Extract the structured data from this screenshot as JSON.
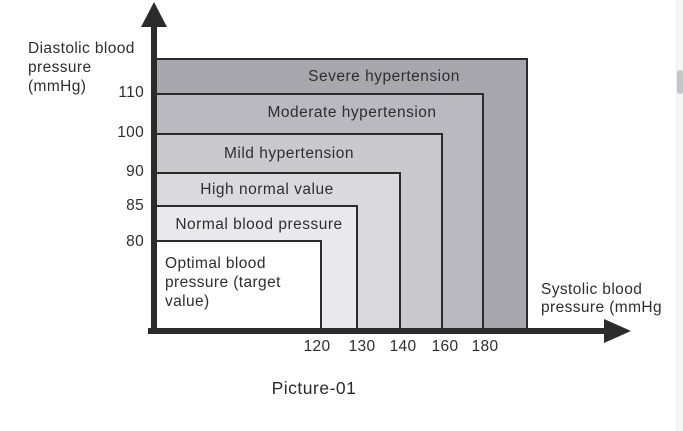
{
  "chart_data": {
    "type": "area",
    "title": "Picture-01",
    "xlabel": "Systolic blood pressure (mmHg",
    "ylabel": "Diastolic blood pressure (mmHg)",
    "x_ticks": [
      120,
      130,
      140,
      160,
      180
    ],
    "y_ticks": [
      110,
      100,
      90,
      85,
      80
    ],
    "legend_position": "none",
    "grid": false,
    "zones": [
      {
        "label": "Optimal blood pressure (target value)",
        "systolic_upper": 120,
        "diastolic_upper": 80,
        "color": "#ffffff"
      },
      {
        "label": "Normal blood pressure",
        "systolic_upper": 130,
        "diastolic_upper": 85,
        "color": "#e9e9eb"
      },
      {
        "label": "High normal value",
        "systolic_upper": 140,
        "diastolic_upper": 90,
        "color": "#dadadd"
      },
      {
        "label": "Mild hypertension",
        "systolic_upper": 160,
        "diastolic_upper": 100,
        "color": "#cacace"
      },
      {
        "label": "Moderate hypertension",
        "systolic_upper": 180,
        "diastolic_upper": 110,
        "color": "#b9b9bf"
      },
      {
        "label": "Severe hypertension",
        "systolic_upper": ">180",
        "diastolic_upper": ">110",
        "color": "#a7a7ad"
      }
    ]
  },
  "display": {
    "y_axis_title_lines": [
      "Diastolic blood",
      "pressure",
      "(mmHg)"
    ],
    "x_axis_title_lines": [
      "Systolic blood",
      "pressure (mmHg"
    ],
    "y_tick_labels": [
      "110",
      "100",
      "90",
      "85",
      "80"
    ],
    "x_tick_labels": [
      "120",
      "130",
      "140",
      "160",
      "180"
    ],
    "band_labels": {
      "severe": "Severe hypertension",
      "moderate": "Moderate hypertension",
      "mild": "Mild hypertension",
      "high_normal": "High normal value",
      "normal": "Normal blood pressure",
      "optimal_lines": [
        "Optimal blood",
        "pressure (target",
        "value)"
      ]
    },
    "caption": "Picture-01"
  },
  "colors": {
    "severe": "#a7a7ad",
    "moderate": "#b9b9bf",
    "mild": "#cacace",
    "high_normal": "#dadadd",
    "normal": "#e9e9eb",
    "optimal": "#ffffff",
    "axis": "#2b2b2b",
    "border": "#2b2b2b",
    "text": "#2e2e2e",
    "scrollbar_track": "#f6f6f8",
    "scrollbar_thumb": "#c6c6ca"
  }
}
